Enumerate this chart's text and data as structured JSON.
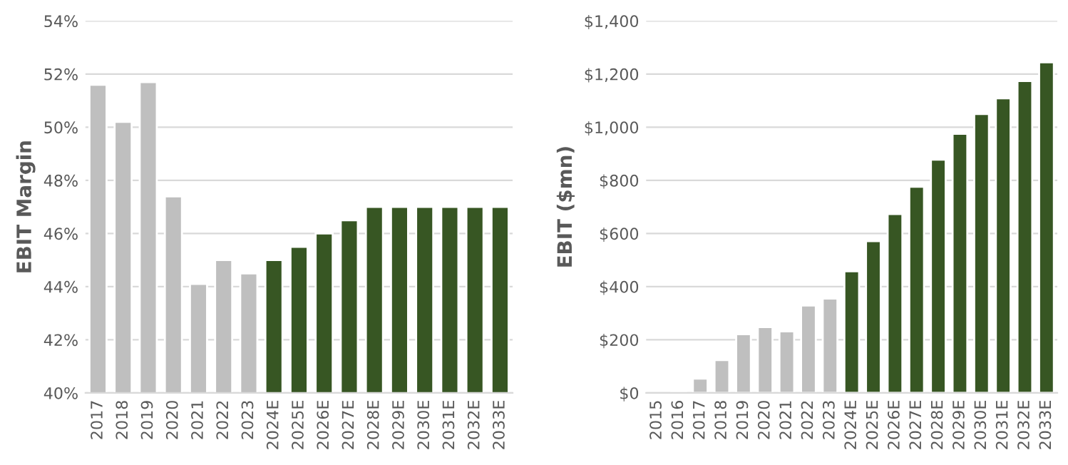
{
  "chart_data": [
    {
      "type": "bar",
      "ylabel": "EBIT Margin",
      "categories": [
        "2017",
        "2018",
        "2019",
        "2020",
        "2021",
        "2022",
        "2023",
        "2024E",
        "2025E",
        "2026E",
        "2027E",
        "2028E",
        "2029E",
        "2030E",
        "2031E",
        "2032E",
        "2033E"
      ],
      "values": [
        51.6,
        50.2,
        51.7,
        47.4,
        44.1,
        45.0,
        44.5,
        45.0,
        45.5,
        46.0,
        46.5,
        47.0,
        47.0,
        47.0,
        47.0,
        47.0,
        47.0
      ],
      "colors": [
        "#bfbfbf",
        "#bfbfbf",
        "#bfbfbf",
        "#bfbfbf",
        "#bfbfbf",
        "#bfbfbf",
        "#bfbfbf",
        "#375623",
        "#375623",
        "#375623",
        "#375623",
        "#375623",
        "#375623",
        "#375623",
        "#375623",
        "#375623",
        "#375623"
      ],
      "ylim": [
        40,
        54
      ],
      "yticks": [
        {
          "value": 40,
          "label": "40%"
        },
        {
          "value": 42,
          "label": "42%"
        },
        {
          "value": 44,
          "label": "44%"
        },
        {
          "value": 46,
          "label": "46%"
        },
        {
          "value": 48,
          "label": "48%"
        },
        {
          "value": 50,
          "label": "50%"
        },
        {
          "value": 52,
          "label": "52%"
        },
        {
          "value": 54,
          "label": "54%"
        }
      ],
      "grid": "y"
    },
    {
      "type": "bar",
      "ylabel": "EBIT ($mn)",
      "categories": [
        "2015",
        "2016",
        "2017",
        "2018",
        "2019",
        "2020",
        "2021",
        "2022",
        "2023",
        "2024E",
        "2025E",
        "2026E",
        "2027E",
        "2028E",
        "2029E",
        "2030E",
        "2031E",
        "2032E",
        "2033E"
      ],
      "values": [
        null,
        5,
        54,
        124,
        221,
        248,
        232,
        329,
        355,
        458,
        571,
        673,
        776,
        878,
        975,
        1050,
        1109,
        1174,
        1244
      ],
      "colors": [
        "#bfbfbf",
        "#bfbfbf",
        "#bfbfbf",
        "#bfbfbf",
        "#bfbfbf",
        "#bfbfbf",
        "#bfbfbf",
        "#bfbfbf",
        "#bfbfbf",
        "#375623",
        "#375623",
        "#375623",
        "#375623",
        "#375623",
        "#375623",
        "#375623",
        "#375623",
        "#375623",
        "#375623"
      ],
      "ylim": [
        0,
        1400
      ],
      "yticks": [
        {
          "value": 0,
          "label": "$0"
        },
        {
          "value": 200,
          "label": "$200"
        },
        {
          "value": 400,
          "label": "$400"
        },
        {
          "value": 600,
          "label": "$600"
        },
        {
          "value": 800,
          "label": "$800"
        },
        {
          "value": 1000,
          "label": "$1,000"
        },
        {
          "value": 1200,
          "label": "$1,200"
        },
        {
          "value": 1400,
          "label": "$1,400"
        }
      ],
      "grid": "y"
    }
  ]
}
